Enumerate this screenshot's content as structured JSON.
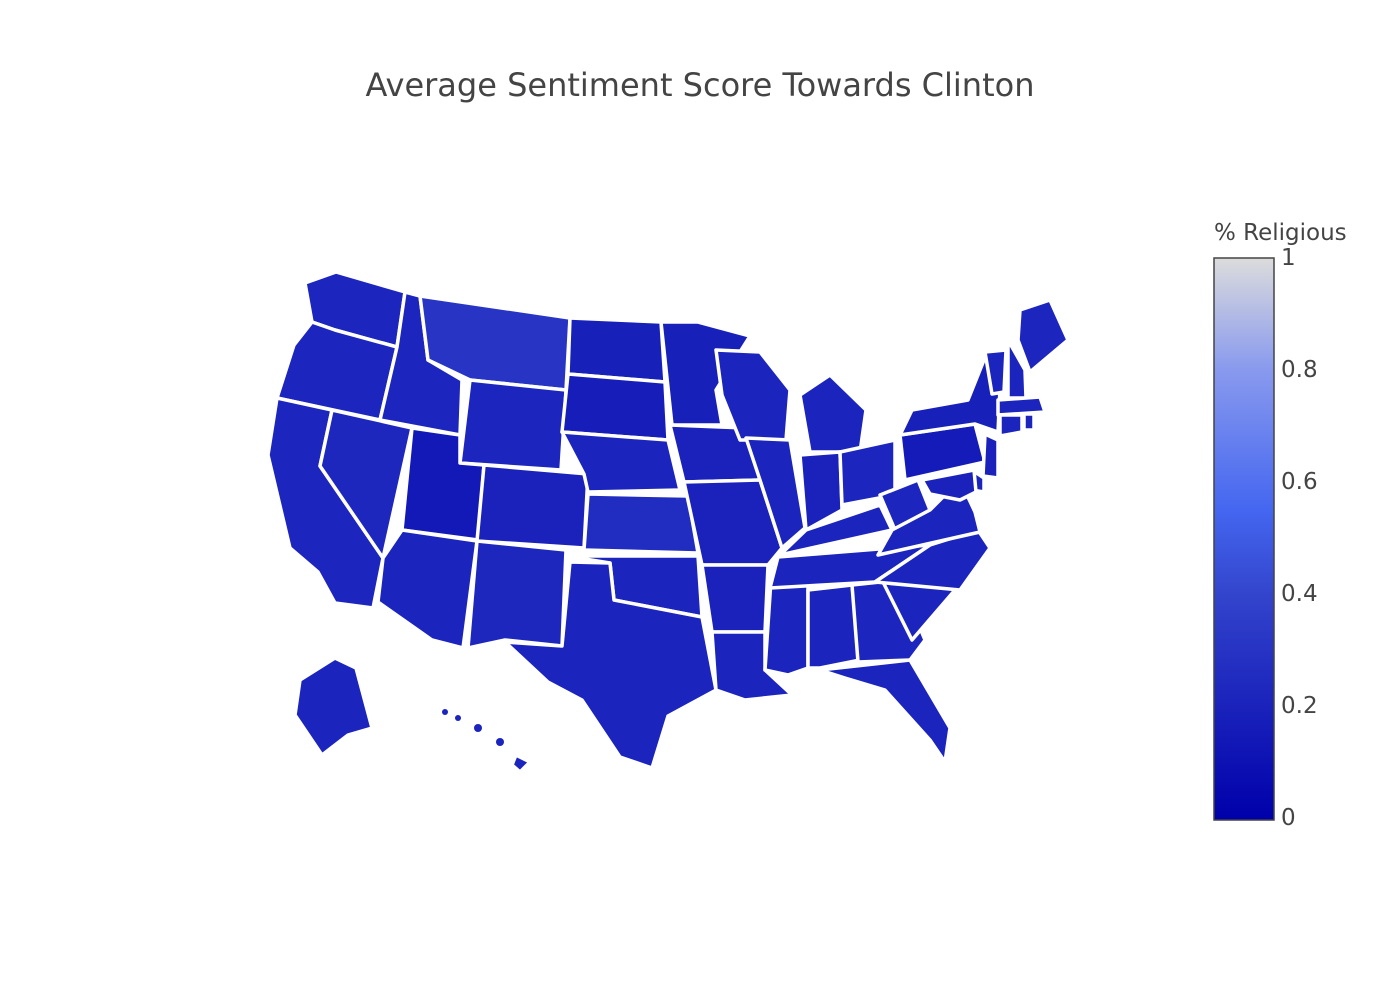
{
  "chart_data": {
    "type": "choropleth",
    "title": "Average Sentiment Score Towards Clinton",
    "geography": "usa-states",
    "colorbar": {
      "title": "% Religious",
      "range": [
        0,
        1
      ],
      "ticks": [
        "0",
        "0.2",
        "0.4",
        "0.6",
        "0.8",
        "1"
      ],
      "colorscale": [
        [
          0.0,
          "#0000aa"
        ],
        [
          0.4,
          "#3344cc"
        ],
        [
          0.55,
          "#4466f0"
        ],
        [
          0.8,
          "#8899ee"
        ],
        [
          1.0,
          "#dcdcdc"
        ]
      ]
    },
    "values": {
      "WA": 0.22,
      "OR": 0.22,
      "CA": 0.22,
      "NV": 0.23,
      "ID": 0.22,
      "MT": 0.31,
      "WY": 0.22,
      "UT": 0.15,
      "CO": 0.2,
      "AZ": 0.21,
      "NM": 0.23,
      "ND": 0.19,
      "SD": 0.17,
      "NE": 0.21,
      "KS": 0.26,
      "OK": 0.21,
      "TX": 0.21,
      "MN": 0.19,
      "IA": 0.2,
      "MO": 0.2,
      "AR": 0.2,
      "LA": 0.21,
      "WI": 0.21,
      "IL": 0.21,
      "MS": 0.21,
      "MI": 0.21,
      "IN": 0.2,
      "KY": 0.21,
      "TN": 0.21,
      "AL": 0.21,
      "OH": 0.22,
      "WV": 0.22,
      "GA": 0.22,
      "FL": 0.21,
      "SC": 0.21,
      "NC": 0.21,
      "VA": 0.21,
      "PA": 0.16,
      "NY": 0.19,
      "VT": 0.21,
      "NH": 0.21,
      "ME": 0.22,
      "MA": 0.21,
      "CT": 0.21,
      "RI": 0.21,
      "NJ": 0.2,
      "DE": 0.21,
      "MD": 0.2,
      "AK": 0.21,
      "HI": 0.21
    }
  }
}
